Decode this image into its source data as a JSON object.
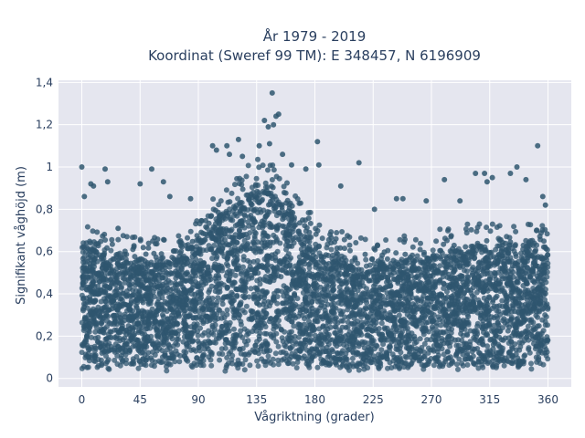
{
  "chart_data": {
    "type": "scatter",
    "title": "År 1979 - 2019",
    "subtitle": "Koordinat (Sweref 99 TM): E 348457, N 6196909",
    "xlabel": "Vågriktning (grader)",
    "ylabel": "Signifikant våghöjd (m)",
    "xlim": [
      -18,
      378
    ],
    "ylim": [
      -0.04,
      1.41
    ],
    "x_ticks": [
      0,
      45,
      90,
      135,
      180,
      225,
      270,
      315,
      360
    ],
    "x_tick_labels": [
      "0",
      "45",
      "90",
      "135",
      "180",
      "225",
      "270",
      "315",
      "360"
    ],
    "y_ticks": [
      0,
      0.2,
      0.4,
      0.6,
      0.8,
      1.0,
      1.2,
      1.4
    ],
    "y_tick_labels": [
      "0",
      "0,2",
      "0,4",
      "0,6",
      "0,8",
      "1",
      "1,2",
      "1,4"
    ],
    "grid": true,
    "legend": "none",
    "marker_color": "#2f566f",
    "plot_background": "#e5e6ef",
    "envelope": {
      "direction": [
        0,
        10,
        20,
        30,
        45,
        60,
        75,
        90,
        100,
        110,
        120,
        130,
        135,
        140,
        150,
        160,
        170,
        180,
        190,
        200,
        210,
        225,
        240,
        255,
        270,
        285,
        300,
        315,
        330,
        345,
        360
      ],
      "min_height": [
        0.05,
        0.05,
        0.05,
        0.05,
        0.05,
        0.05,
        0.05,
        0.05,
        0.05,
        0.05,
        0.05,
        0.05,
        0.05,
        0.05,
        0.05,
        0.05,
        0.05,
        0.05,
        0.05,
        0.05,
        0.05,
        0.05,
        0.05,
        0.05,
        0.05,
        0.05,
        0.05,
        0.05,
        0.05,
        0.05,
        0.05
      ],
      "dense_max_height": [
        0.65,
        0.62,
        0.6,
        0.58,
        0.55,
        0.55,
        0.6,
        0.65,
        0.72,
        0.8,
        0.85,
        0.9,
        0.92,
        0.92,
        0.88,
        0.8,
        0.7,
        0.65,
        0.62,
        0.58,
        0.55,
        0.55,
        0.55,
        0.57,
        0.6,
        0.6,
        0.62,
        0.62,
        0.63,
        0.62,
        0.6
      ]
    },
    "outliers": [
      {
        "x": 0,
        "y": 1.0
      },
      {
        "x": 2,
        "y": 0.86
      },
      {
        "x": 7,
        "y": 0.92
      },
      {
        "x": 9,
        "y": 0.91
      },
      {
        "x": 18,
        "y": 0.99
      },
      {
        "x": 20,
        "y": 0.93
      },
      {
        "x": 28,
        "y": 0.71
      },
      {
        "x": 45,
        "y": 0.92
      },
      {
        "x": 54,
        "y": 0.99
      },
      {
        "x": 63,
        "y": 0.93
      },
      {
        "x": 68,
        "y": 0.86
      },
      {
        "x": 84,
        "y": 0.85
      },
      {
        "x": 101,
        "y": 1.1
      },
      {
        "x": 104,
        "y": 1.08
      },
      {
        "x": 112,
        "y": 1.1
      },
      {
        "x": 114,
        "y": 1.06
      },
      {
        "x": 121,
        "y": 1.13
      },
      {
        "x": 124,
        "y": 1.05
      },
      {
        "x": 137,
        "y": 1.1
      },
      {
        "x": 141,
        "y": 1.22
      },
      {
        "x": 144,
        "y": 1.19
      },
      {
        "x": 145,
        "y": 1.11
      },
      {
        "x": 147,
        "y": 1.35
      },
      {
        "x": 148,
        "y": 1.2
      },
      {
        "x": 150,
        "y": 1.24
      },
      {
        "x": 152,
        "y": 1.25
      },
      {
        "x": 155,
        "y": 1.06
      },
      {
        "x": 162,
        "y": 1.01
      },
      {
        "x": 173,
        "y": 0.99
      },
      {
        "x": 182,
        "y": 1.12
      },
      {
        "x": 183,
        "y": 1.01
      },
      {
        "x": 200,
        "y": 0.91
      },
      {
        "x": 214,
        "y": 1.02
      },
      {
        "x": 226,
        "y": 0.8
      },
      {
        "x": 243,
        "y": 0.85
      },
      {
        "x": 248,
        "y": 0.85
      },
      {
        "x": 266,
        "y": 0.84
      },
      {
        "x": 280,
        "y": 0.94
      },
      {
        "x": 292,
        "y": 0.84
      },
      {
        "x": 304,
        "y": 0.97
      },
      {
        "x": 311,
        "y": 0.97
      },
      {
        "x": 313,
        "y": 0.93
      },
      {
        "x": 317,
        "y": 0.95
      },
      {
        "x": 331,
        "y": 0.97
      },
      {
        "x": 336,
        "y": 1.0
      },
      {
        "x": 343,
        "y": 0.94
      },
      {
        "x": 352,
        "y": 1.1
      },
      {
        "x": 356,
        "y": 0.86
      },
      {
        "x": 358,
        "y": 0.82
      }
    ]
  }
}
